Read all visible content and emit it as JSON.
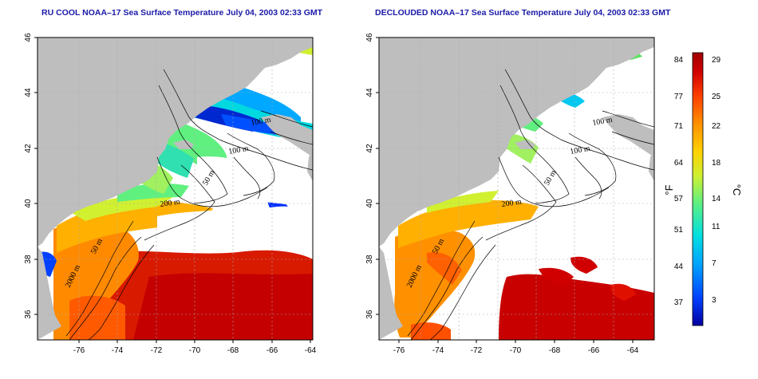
{
  "maps": [
    {
      "title": "RU COOL NOAA–17 Sea Surface Temperature July 04, 2003 02:33 GMT",
      "x_ticks": [
        "-76",
        "-74",
        "-72",
        "-70",
        "-68",
        "-66",
        "-64"
      ],
      "y_ticks": [
        "46",
        "44",
        "42",
        "40",
        "38",
        "36"
      ],
      "contour_labels": [
        "100 m",
        "100 m",
        "50 m",
        "200 m",
        "50 m",
        "2000 m"
      ]
    },
    {
      "title": "DECLOUDED NOAA–17 Sea Surface Temperature July 04, 2003 02:33 GMT",
      "x_ticks": [
        "-76",
        "-74",
        "-72",
        "-70",
        "-68",
        "-66",
        "-64"
      ],
      "y_ticks": [
        "46",
        "44",
        "42",
        "40",
        "38",
        "36"
      ],
      "contour_labels": [
        "100 m",
        "100 m",
        "50 m",
        "200 m",
        "50 m",
        "2000 m"
      ]
    }
  ],
  "colorbar": {
    "unit_f": "°F",
    "unit_c": "°C",
    "f_ticks": [
      "84",
      "77",
      "71",
      "64",
      "57",
      "51",
      "44",
      "37"
    ],
    "c_ticks": [
      "29",
      "25",
      "22",
      "18",
      "14",
      "11",
      "7",
      "3"
    ]
  },
  "colors": {
    "land": "#bebebe",
    "cloud": "#ffffff",
    "title": "#1a1aa8",
    "colormap": [
      "#0000a0",
      "#0040ff",
      "#00a0ff",
      "#00e0e0",
      "#60f080",
      "#d0f030",
      "#ffd000",
      "#ff9000",
      "#ff4000",
      "#d00000",
      "#a00000"
    ]
  }
}
